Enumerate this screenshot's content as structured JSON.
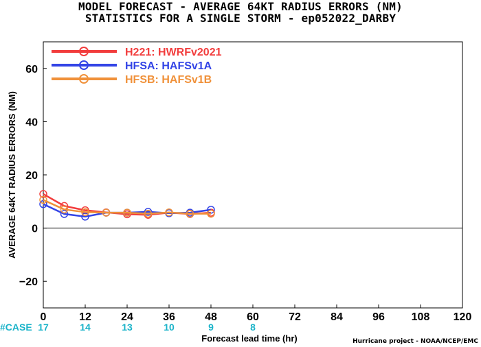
{
  "title": "MODEL FORECAST - AVERAGE 64KT RADIUS ERRORS (NM)",
  "subtitle": "STATISTICS FOR A SINGLE STORM - ep052022_DARBY",
  "credit": "Hurricane project - NOAA/NCEP/EMC",
  "case_label": "#CASE",
  "chart_data": {
    "type": "line",
    "xlabel": "Forecast lead time (hr)",
    "ylabel": "AVERAGE 64KT RADIUS ERRORS (NM)",
    "xlim": [
      0,
      120
    ],
    "ylim": [
      -30,
      70
    ],
    "xticks": [
      0,
      12,
      24,
      36,
      48,
      60,
      72,
      84,
      96,
      108,
      120
    ],
    "yticks": [
      -20,
      0,
      20,
      40,
      60
    ],
    "ytick_labels": [
      "−20",
      "0",
      "20",
      "40",
      "60"
    ],
    "grid": false,
    "zero_line": true,
    "legend_position": "top-left",
    "cases": [
      {
        "x": 0,
        "n": "17"
      },
      {
        "x": 12,
        "n": "14"
      },
      {
        "x": 24,
        "n": "13"
      },
      {
        "x": 36,
        "n": "10"
      },
      {
        "x": 48,
        "n": "9"
      },
      {
        "x": 60,
        "n": "8"
      }
    ],
    "series": [
      {
        "name": "H221: HWRFv2021",
        "color": "#f23c3c",
        "x": [
          0,
          6,
          12,
          18,
          24,
          30,
          36,
          42,
          48
        ],
        "y": [
          12.8,
          8.3,
          6.7,
          5.9,
          5.2,
          5.0,
          5.8,
          5.3,
          5.8
        ]
      },
      {
        "name": "HFSA: HAFSv1A",
        "color": "#3344e6",
        "x": [
          0,
          6,
          12,
          18,
          24,
          30,
          36,
          42,
          48
        ],
        "y": [
          9.0,
          5.3,
          4.3,
          5.8,
          5.8,
          6.1,
          5.6,
          5.8,
          6.9
        ]
      },
      {
        "name": "HFSB: HAFSv1B",
        "color": "#f0913a",
        "x": [
          0,
          6,
          12,
          18,
          24,
          30,
          36,
          42,
          48
        ],
        "y": [
          10.6,
          7.0,
          6.0,
          5.8,
          5.8,
          5.4,
          5.9,
          5.4,
          5.4
        ]
      }
    ]
  }
}
